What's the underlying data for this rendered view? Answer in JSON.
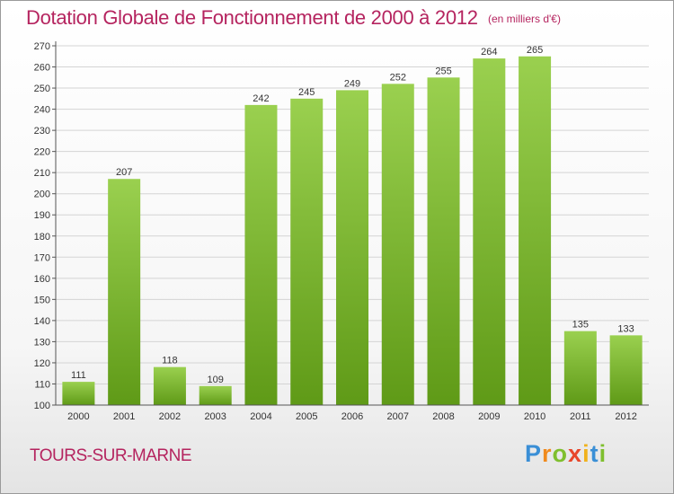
{
  "header": {
    "title": "Dotation Globale de Fonctionnement de 2000 à 2012",
    "subtitle": "(en milliers d'€)"
  },
  "footer": {
    "commune": "TOURS-SUR-MARNE",
    "logo": {
      "letters": [
        "P",
        "r",
        "o",
        "x",
        "i",
        "t",
        "i"
      ],
      "colors": [
        "#3a8fd6",
        "#f08a1d",
        "#7fbf2e",
        "#e8462a",
        "#f0b21d",
        "#3a8fd6",
        "#7fbf2e"
      ]
    }
  },
  "colors": {
    "accent": "#b5245f",
    "bar_top": "#9ad04f",
    "bar_bottom": "#5f9a17"
  },
  "chart_data": {
    "type": "bar",
    "title": "Dotation Globale de Fonctionnement de 2000 à 2012",
    "subtitle": "(en milliers d'€)",
    "categories": [
      "2000",
      "2001",
      "2002",
      "2003",
      "2004",
      "2005",
      "2006",
      "2007",
      "2008",
      "2009",
      "2010",
      "2011",
      "2012"
    ],
    "values": [
      111,
      207,
      118,
      109,
      242,
      245,
      249,
      252,
      255,
      264,
      265,
      135,
      133
    ],
    "ylim": [
      100,
      270
    ],
    "yticks": [
      100,
      110,
      120,
      130,
      140,
      150,
      160,
      170,
      180,
      190,
      200,
      210,
      220,
      230,
      240,
      250,
      260,
      270
    ],
    "grid": true,
    "legend": "none",
    "data_labels": true
  }
}
